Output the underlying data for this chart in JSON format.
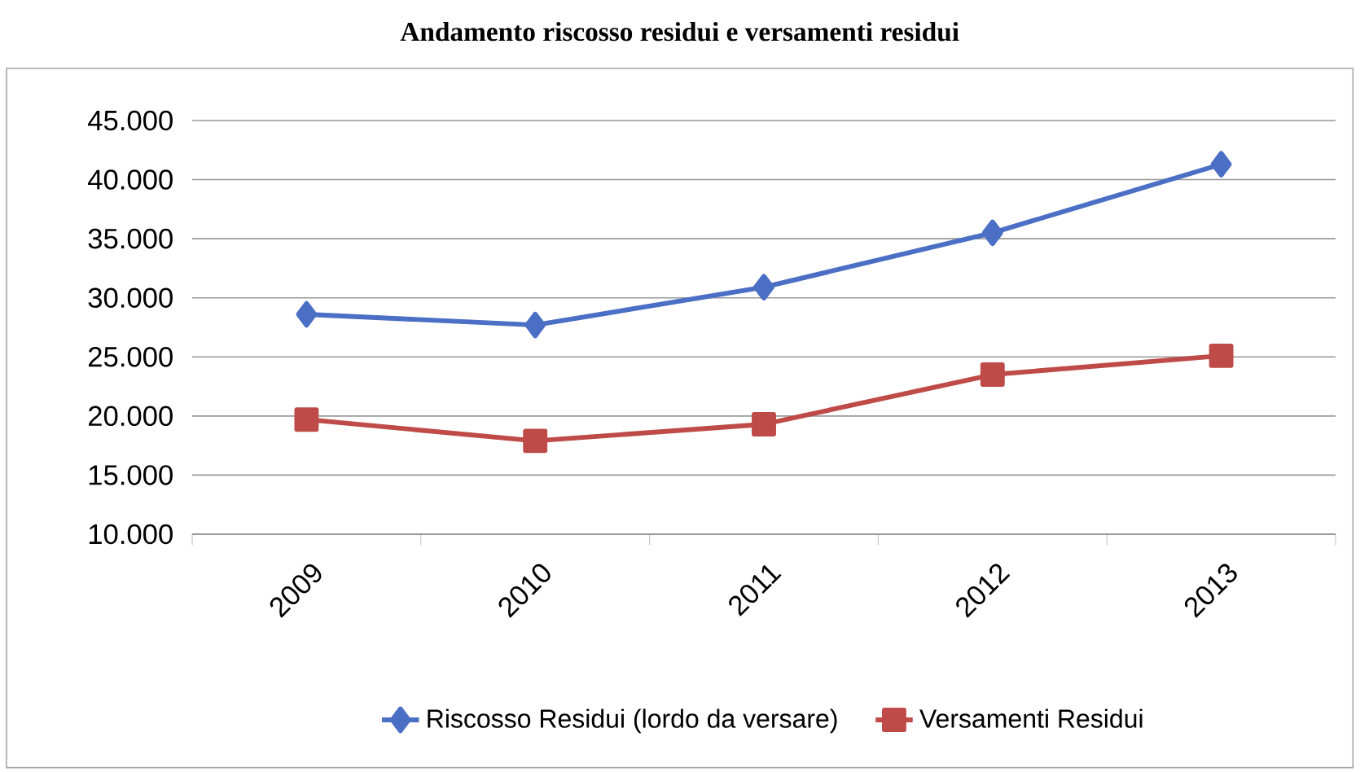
{
  "chart_data": {
    "type": "line",
    "title": "Andamento riscosso residui e versamenti residui",
    "categories": [
      "2009",
      "2010",
      "2011",
      "2012",
      "2013"
    ],
    "series": [
      {
        "name": "Riscosso Residui (lordo da versare)",
        "color": "#4a6fc4",
        "marker": "diamond",
        "values": [
          28600,
          27700,
          30900,
          35500,
          41300
        ]
      },
      {
        "name": "Versamenti Residui",
        "color": "#be4b48",
        "marker": "square",
        "values": [
          19700,
          17900,
          19300,
          23500,
          25100
        ]
      }
    ],
    "ylim": [
      10000,
      45000
    ],
    "yticks": [
      {
        "value": 10000,
        "label": "10.000"
      },
      {
        "value": 15000,
        "label": "15.000"
      },
      {
        "value": 20000,
        "label": "20.000"
      },
      {
        "value": 25000,
        "label": "25.000"
      },
      {
        "value": 30000,
        "label": "30.000"
      },
      {
        "value": 35000,
        "label": "35.000"
      },
      {
        "value": 40000,
        "label": "40.000"
      },
      {
        "value": 45000,
        "label": "45.000"
      }
    ],
    "grid": "y",
    "legend": "bottom"
  }
}
